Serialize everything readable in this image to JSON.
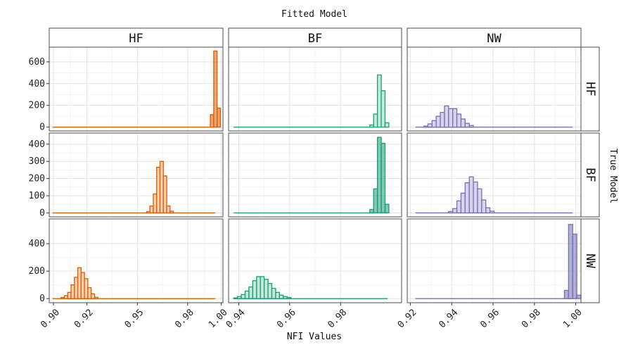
{
  "chart_data": {
    "type": "histogram-grid",
    "title": "Fitted Model",
    "xlabel": "NFI Values",
    "right_label": "True Model",
    "columns": [
      "HF",
      "BF",
      "NW"
    ],
    "rows": [
      "HF",
      "BF",
      "NW"
    ],
    "colors": {
      "HF": "#d95f02",
      "BF": "#1b9e77",
      "NW": "#7570b3"
    },
    "fills": {
      "HF": "#f9cfb0",
      "BF": "#c4e8da",
      "NW": "#d7d5ec"
    },
    "x_axes": [
      {
        "range": [
          0.8975,
          1.001
        ],
        "ticks": [
          0.9,
          0.92,
          0.95,
          0.98,
          1.0
        ],
        "tick_labels": [
          "0.90",
          "0.92",
          "0.95",
          "0.98",
          "1.00"
        ]
      },
      {
        "range": [
          0.936,
          1.004
        ],
        "ticks": [
          0.94,
          0.96,
          0.98
        ],
        "tick_labels": [
          "0.94",
          "0.96",
          "0.98"
        ]
      },
      {
        "range": [
          0.9185,
          1.0025
        ],
        "ticks": [
          0.92,
          0.94,
          0.96,
          0.98,
          1.0
        ],
        "tick_labels": [
          "0.92",
          "0.94",
          "0.96",
          "0.98",
          "1.00"
        ]
      }
    ],
    "y_axes": [
      {
        "range": [
          -35,
          735
        ],
        "ticks": [
          0,
          200,
          400,
          600
        ],
        "tick_labels": [
          "0",
          "200",
          "400",
          "600"
        ]
      },
      {
        "range": [
          -23,
          465
        ],
        "ticks": [
          0,
          100,
          200,
          300,
          400
        ],
        "tick_labels": [
          "0",
          "100",
          "200",
          "300",
          "400"
        ]
      },
      {
        "range": [
          -30,
          580
        ],
        "ticks": [
          0,
          200,
          400
        ],
        "tick_labels": [
          "0",
          "200",
          "400"
        ]
      }
    ],
    "panels": [
      {
        "row": "HF",
        "col": "HF",
        "flat": [
          0.8995,
          0.9935
        ],
        "bins": [
          [
            0.9935,
            0.9955,
            115
          ],
          [
            0.9955,
            0.9975,
            700
          ],
          [
            0.9975,
            0.9995,
            175
          ]
        ]
      },
      {
        "row": "HF",
        "col": "BF",
        "flat": [
          0.938,
          0.9915
        ],
        "bins": [
          [
            0.9915,
            0.993,
            20
          ],
          [
            0.993,
            0.9945,
            120
          ],
          [
            0.9945,
            0.996,
            480
          ],
          [
            0.996,
            0.9975,
            335
          ],
          [
            0.9975,
            0.999,
            40
          ]
        ]
      },
      {
        "row": "HF",
        "col": "NW",
        "flat": [
          0.9225,
          0.9985
        ],
        "bins": [
          [
            0.9265,
            0.9285,
            10
          ],
          [
            0.9285,
            0.9305,
            30
          ],
          [
            0.9305,
            0.9325,
            60
          ],
          [
            0.9325,
            0.9345,
            100
          ],
          [
            0.9345,
            0.9365,
            135
          ],
          [
            0.9365,
            0.9385,
            195
          ],
          [
            0.9385,
            0.9405,
            170
          ],
          [
            0.9405,
            0.9425,
            170
          ],
          [
            0.9425,
            0.9445,
            120
          ],
          [
            0.9445,
            0.9465,
            75
          ],
          [
            0.9465,
            0.9485,
            35
          ],
          [
            0.9485,
            0.9505,
            15
          ]
        ]
      },
      {
        "row": "BF",
        "col": "HF",
        "flat": [
          0.8995,
          0.9965
        ],
        "bins": [
          [
            0.9555,
            0.9575,
            8
          ],
          [
            0.9575,
            0.9595,
            40
          ],
          [
            0.9595,
            0.9615,
            110
          ],
          [
            0.9615,
            0.9635,
            265
          ],
          [
            0.9635,
            0.9655,
            300
          ],
          [
            0.9655,
            0.9675,
            215
          ],
          [
            0.9675,
            0.9695,
            40
          ],
          [
            0.9695,
            0.9715,
            10
          ]
        ]
      },
      {
        "row": "BF",
        "col": "BF",
        "flat": [
          0.938,
          0.9915
        ],
        "bins": [
          [
            0.9915,
            0.993,
            20
          ],
          [
            0.993,
            0.9945,
            140
          ],
          [
            0.9945,
            0.996,
            440
          ],
          [
            0.996,
            0.9975,
            405
          ],
          [
            0.9975,
            0.999,
            50
          ]
        ]
      },
      {
        "row": "BF",
        "col": "NW",
        "flat": [
          0.9225,
          0.9985
        ],
        "bins": [
          [
            0.9385,
            0.9405,
            8
          ],
          [
            0.9405,
            0.9425,
            25
          ],
          [
            0.9425,
            0.9445,
            70
          ],
          [
            0.9445,
            0.9465,
            115
          ],
          [
            0.9465,
            0.9485,
            175
          ],
          [
            0.9485,
            0.9505,
            210
          ],
          [
            0.9505,
            0.9525,
            180
          ],
          [
            0.9525,
            0.9545,
            140
          ],
          [
            0.9545,
            0.9565,
            75
          ],
          [
            0.9565,
            0.9585,
            30
          ],
          [
            0.9585,
            0.9605,
            10
          ]
        ]
      },
      {
        "row": "NW",
        "col": "HF",
        "flat": [
          0.8995,
          0.9965
        ],
        "bins": [
          [
            0.9045,
            0.9065,
            8
          ],
          [
            0.9065,
            0.9085,
            22
          ],
          [
            0.9085,
            0.9105,
            45
          ],
          [
            0.9105,
            0.9125,
            100
          ],
          [
            0.9125,
            0.9145,
            155
          ],
          [
            0.9145,
            0.9165,
            225
          ],
          [
            0.9165,
            0.9185,
            190
          ],
          [
            0.9185,
            0.9205,
            145
          ],
          [
            0.9205,
            0.9225,
            80
          ],
          [
            0.9225,
            0.9245,
            35
          ],
          [
            0.9245,
            0.9265,
            10
          ]
        ]
      },
      {
        "row": "NW",
        "col": "BF",
        "flat": [
          0.938,
          0.9985
        ],
        "bins": [
          [
            0.938,
            0.9395,
            5
          ],
          [
            0.9395,
            0.941,
            15
          ],
          [
            0.941,
            0.9425,
            30
          ],
          [
            0.9425,
            0.944,
            55
          ],
          [
            0.944,
            0.9455,
            85
          ],
          [
            0.9455,
            0.947,
            130
          ],
          [
            0.947,
            0.9485,
            160
          ],
          [
            0.9485,
            0.95,
            160
          ],
          [
            0.95,
            0.9515,
            140
          ],
          [
            0.9515,
            0.953,
            110
          ],
          [
            0.953,
            0.9545,
            75
          ],
          [
            0.9545,
            0.956,
            45
          ],
          [
            0.956,
            0.9575,
            25
          ],
          [
            0.9575,
            0.959,
            15
          ],
          [
            0.959,
            0.9605,
            8
          ]
        ]
      },
      {
        "row": "NW",
        "col": "NW",
        "flat": [
          0.9225,
          0.9985
        ],
        "bins": [
          [
            0.9945,
            0.9965,
            60
          ],
          [
            0.9965,
            0.9985,
            540
          ],
          [
            0.9985,
            1.0005,
            470
          ],
          [
            1.0005,
            1.0025,
            25
          ]
        ]
      }
    ]
  }
}
